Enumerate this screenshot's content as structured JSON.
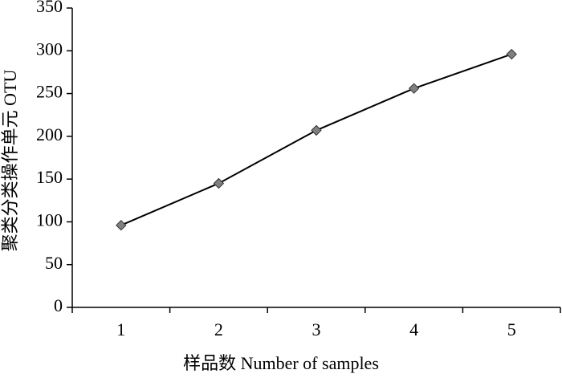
{
  "chart_data": {
    "type": "line",
    "x_label": "样品数 Number of samples",
    "y_label": "聚类分类操作单元 OTU",
    "categories": [
      "1",
      "2",
      "3",
      "4",
      "5"
    ],
    "values": [
      96,
      145,
      207,
      256,
      296
    ],
    "color": "#000000",
    "marker_color": "#808080",
    "ylim": [
      0,
      350
    ],
    "yticks": [
      0,
      50,
      100,
      150,
      200,
      250,
      300,
      350
    ]
  }
}
